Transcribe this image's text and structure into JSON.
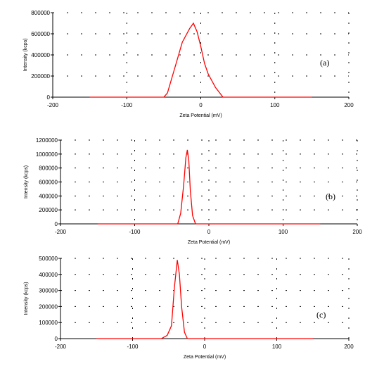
{
  "chart_data": [
    {
      "type": "line",
      "panel_label": "(a)",
      "xlabel": "Zeta Potential (mV)",
      "ylabel": "Intensity (kcps)",
      "xlim": [
        -200,
        200
      ],
      "ylim": [
        0,
        800000
      ],
      "x_ticks": [
        -200,
        -100,
        0,
        100,
        200
      ],
      "y_ticks": [
        0,
        200000,
        400000,
        600000,
        800000
      ],
      "grid": "dotted",
      "series": [
        {
          "color": "#ff0000",
          "x": [
            -150,
            -50,
            -45,
            -35,
            -25,
            -15,
            -10,
            -5,
            0,
            5,
            10,
            20,
            30,
            150
          ],
          "y": [
            0,
            0,
            40000,
            280000,
            520000,
            650000,
            700000,
            620000,
            480000,
            320000,
            220000,
            90000,
            0,
            0
          ]
        }
      ]
    },
    {
      "type": "line",
      "panel_label": "(b)",
      "xlabel": "Zeta Potential (mV)",
      "ylabel": "Intensity (kcps)",
      "xlim": [
        -200,
        200
      ],
      "ylim": [
        0,
        1200000
      ],
      "x_ticks": [
        -200,
        -100,
        0,
        100,
        200
      ],
      "y_ticks": [
        0,
        200000,
        400000,
        600000,
        800000,
        1000000,
        1200000
      ],
      "grid": "dotted",
      "series": [
        {
          "color": "#ff0000",
          "x": [
            -150,
            -42,
            -38,
            -34,
            -31,
            -29,
            -27,
            -25,
            -22,
            -18,
            150
          ],
          "y": [
            0,
            0,
            150000,
            550000,
            950000,
            1060000,
            900000,
            480000,
            120000,
            0,
            0
          ]
        }
      ]
    },
    {
      "type": "line",
      "panel_label": "(c)",
      "xlabel": "Zeta Potential (mV)",
      "ylabel": "Intensity (kcps)",
      "xlim": [
        -200,
        200
      ],
      "ylim": [
        0,
        500000
      ],
      "x_ticks": [
        -200,
        -100,
        0,
        100,
        200
      ],
      "y_ticks": [
        0,
        100000,
        200000,
        300000,
        400000,
        500000
      ],
      "grid": "dotted",
      "series": [
        {
          "color": "#ff0000",
          "x": [
            -150,
            -60,
            -52,
            -46,
            -42,
            -38,
            -35,
            -32,
            -28,
            -24,
            150
          ],
          "y": [
            0,
            0,
            20000,
            80000,
            320000,
            490000,
            400000,
            200000,
            40000,
            0,
            0
          ]
        }
      ]
    }
  ]
}
